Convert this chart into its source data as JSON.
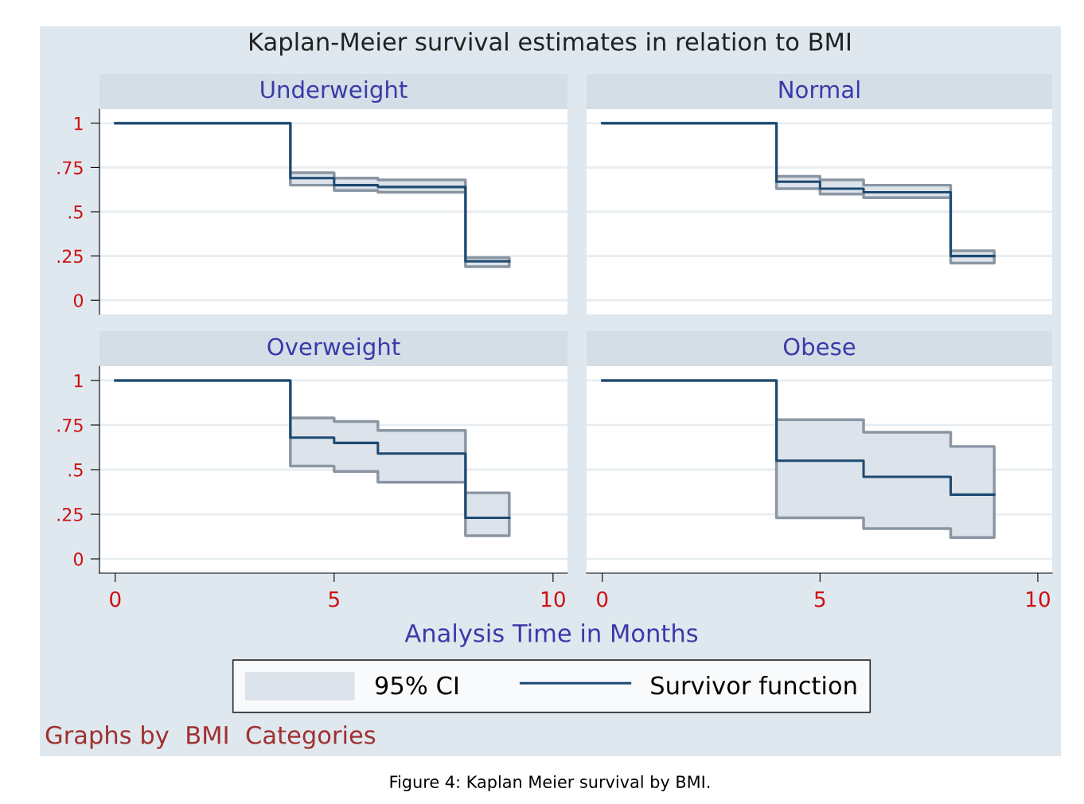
{
  "chart_data": [
    {
      "type": "step",
      "title": "Underweight",
      "xlabel": "Analysis Time in Months",
      "legend": "bottom",
      "grid": "y",
      "tick_labels": "y",
      "line_style": "solid",
      "annotations": [
        "Kaplan-Meier survival estimates in relation to BMI",
        "95% CI",
        "Graphs by  BMI  Categories",
        "Figure 4: Kaplan Meier survival by BMI."
      ],
      "x": [
        0,
        4,
        5,
        6,
        8,
        9
      ],
      "xlim": [
        -0.36,
        10.33
      ],
      "xticks": [
        0,
        5,
        10
      ],
      "ylim": [
        -0.08,
        1.08
      ],
      "yticks": [
        0,
        {
          "value": 0.25,
          "label": ".25"
        },
        {
          "value": 0.5,
          "label": ".5"
        },
        {
          "value": 0.75,
          "label": ".75"
        },
        1
      ],
      "series": [
        {
          "name": "Survivor function",
          "color": "#1d4a72",
          "values": [
            1,
            0.69,
            0.65,
            0.64,
            0.22,
            0.22
          ],
          "lower": [
            1,
            0.65,
            0.62,
            0.61,
            0.19,
            0.19
          ],
          "upper": [
            1,
            0.72,
            0.69,
            0.68,
            0.24,
            0.24
          ]
        }
      ]
    },
    {
      "type": "step",
      "title": "Normal",
      "grid": "y",
      "tick_labels": false,
      "line_style": "solid",
      "x": [
        0,
        4,
        5,
        6,
        8,
        9
      ],
      "xlim": [
        -0.36,
        10.33
      ],
      "xticks": [
        0,
        5,
        10
      ],
      "ylim": [
        -0.08,
        1.08
      ],
      "yticks": [
        0,
        0.25,
        0.5,
        0.75,
        1
      ],
      "series": [
        {
          "color": "#1d4a72",
          "values": [
            1,
            0.67,
            0.63,
            0.61,
            0.25,
            0.25
          ],
          "lower": [
            1,
            0.63,
            0.6,
            0.58,
            0.21,
            0.21
          ],
          "upper": [
            1,
            0.7,
            0.68,
            0.65,
            0.28,
            0.28
          ]
        }
      ]
    },
    {
      "type": "step",
      "title": "Overweight",
      "grid": "y",
      "line_style": "solid",
      "x": [
        0,
        4,
        5,
        6,
        8,
        9
      ],
      "xlim": [
        -0.36,
        10.33
      ],
      "xticks": [
        0,
        5,
        10
      ],
      "ylim": [
        -0.08,
        1.08
      ],
      "yticks": [
        0,
        {
          "value": 0.25,
          "label": ".25"
        },
        {
          "value": 0.5,
          "label": ".5"
        },
        {
          "value": 0.75,
          "label": ".75"
        },
        1
      ],
      "series": [
        {
          "color": "#1d4a72",
          "values": [
            1,
            0.68,
            0.65,
            0.59,
            0.23,
            0.23
          ],
          "lower": [
            1,
            0.52,
            0.49,
            0.43,
            0.13,
            0.13
          ],
          "upper": [
            1,
            0.79,
            0.77,
            0.72,
            0.37,
            0.37
          ]
        }
      ]
    },
    {
      "type": "step",
      "title": "Obese",
      "grid": "y",
      "tick_labels": "x",
      "line_style": "solid",
      "x": [
        0,
        4,
        6,
        8,
        9
      ],
      "xlim": [
        -0.36,
        10.33
      ],
      "xticks": [
        0,
        5,
        10
      ],
      "ylim": [
        -0.08,
        1.08
      ],
      "yticks": [
        0,
        0.25,
        0.5,
        0.75,
        1
      ],
      "series": [
        {
          "color": "#1d4a72",
          "values": [
            1,
            0.55,
            0.46,
            0.36,
            0.36
          ],
          "lower": [
            1,
            0.23,
            0.17,
            0.12,
            0.12
          ],
          "upper": [
            1,
            0.78,
            0.71,
            0.63,
            0.63
          ]
        }
      ]
    }
  ]
}
